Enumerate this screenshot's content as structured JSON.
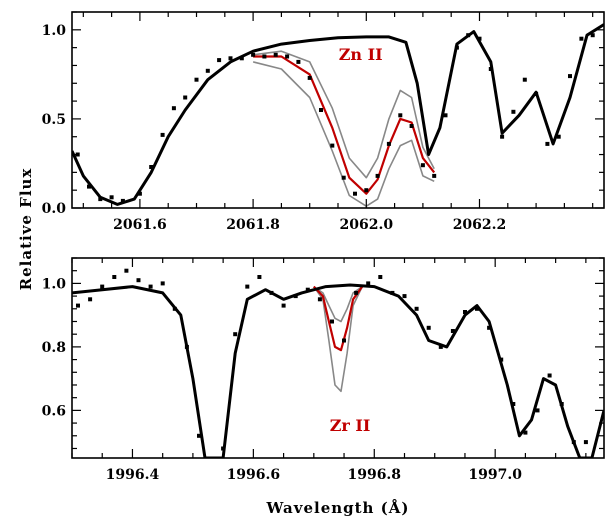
{
  "figure": {
    "xlabel": "Wavelength (Å)",
    "ylabel": "Relative Flux"
  },
  "colors": {
    "data": "#000000",
    "model": "#000000",
    "fit": "#c00000",
    "bounds": "#888888",
    "annotation": "#c00000"
  },
  "chart_data": [
    {
      "type": "line",
      "panel": "top",
      "xlim": [
        2061.48,
        2062.42
      ],
      "ylim": [
        0.0,
        1.1
      ],
      "xticks": [
        2061.6,
        2061.8,
        2062.0,
        2062.2
      ],
      "xtick_labels": [
        "2061.6",
        "2061.8",
        "2062.0",
        "2062.2"
      ],
      "yticks": [
        0.0,
        0.5,
        1.0
      ],
      "ytick_labels": [
        "0.0",
        "0.5",
        "1.0"
      ],
      "annotation": {
        "text": "Zn II",
        "x": 2061.99,
        "y": 0.83
      },
      "series": [
        {
          "name": "",
          "role": "model_without_line",
          "x": [
            2061.48,
            2061.5,
            2061.53,
            2061.56,
            2061.59,
            2061.62,
            2061.65,
            2061.68,
            2061.72,
            2061.76,
            2061.8,
            2061.85,
            2061.9,
            2061.95,
            2062.0,
            2062.04,
            2062.07,
            2062.09,
            2062.11,
            2062.13,
            2062.16,
            2062.19,
            2062.22,
            2062.24,
            2062.27,
            2062.3,
            2062.33,
            2062.36,
            2062.39,
            2062.42
          ],
          "y": [
            0.32,
            0.18,
            0.06,
            0.02,
            0.05,
            0.2,
            0.4,
            0.55,
            0.72,
            0.82,
            0.88,
            0.92,
            0.94,
            0.955,
            0.96,
            0.96,
            0.93,
            0.7,
            0.3,
            0.45,
            0.92,
            0.99,
            0.82,
            0.42,
            0.52,
            0.65,
            0.36,
            0.62,
            0.97,
            1.03
          ]
        },
        {
          "name": "",
          "role": "best_fit",
          "x": [
            2061.8,
            2061.85,
            2061.9,
            2061.94,
            2061.97,
            2062.0,
            2062.02,
            2062.04,
            2062.06,
            2062.08,
            2062.1,
            2062.12
          ],
          "y": [
            0.85,
            0.85,
            0.75,
            0.45,
            0.17,
            0.08,
            0.16,
            0.35,
            0.5,
            0.48,
            0.28,
            0.2
          ]
        },
        {
          "name": "",
          "role": "upper_bound",
          "x": [
            2061.8,
            2061.85,
            2061.9,
            2061.94,
            2061.97,
            2062.0,
            2062.02,
            2062.04,
            2062.06,
            2062.08,
            2062.1,
            2062.12
          ],
          "y": [
            0.86,
            0.88,
            0.82,
            0.56,
            0.28,
            0.17,
            0.28,
            0.5,
            0.66,
            0.62,
            0.34,
            0.22
          ]
        },
        {
          "name": "",
          "role": "lower_bound",
          "x": [
            2061.8,
            2061.85,
            2061.9,
            2061.94,
            2061.97,
            2062.0,
            2062.02,
            2062.04,
            2062.06,
            2062.08,
            2062.1,
            2062.12
          ],
          "y": [
            0.82,
            0.78,
            0.62,
            0.32,
            0.07,
            0.01,
            0.05,
            0.22,
            0.35,
            0.38,
            0.18,
            0.15
          ]
        },
        {
          "name": "",
          "role": "observed",
          "x": [
            2061.49,
            2061.51,
            2061.53,
            2061.55,
            2061.57,
            2061.6,
            2061.62,
            2061.64,
            2061.66,
            2061.68,
            2061.7,
            2061.72,
            2061.74,
            2061.76,
            2061.78,
            2061.8,
            2061.82,
            2061.84,
            2061.86,
            2061.88,
            2061.9,
            2061.92,
            2061.94,
            2061.96,
            2061.98,
            2062.0,
            2062.02,
            2062.04,
            2062.06,
            2062.08,
            2062.1,
            2062.12,
            2062.14,
            2062.16,
            2062.18,
            2062.2,
            2062.22,
            2062.24,
            2062.26,
            2062.28,
            2062.3,
            2062.32,
            2062.34,
            2062.36,
            2062.38,
            2062.4
          ],
          "y": [
            0.3,
            0.12,
            0.05,
            0.06,
            0.04,
            0.08,
            0.23,
            0.41,
            0.56,
            0.62,
            0.72,
            0.77,
            0.83,
            0.84,
            0.84,
            0.86,
            0.85,
            0.86,
            0.85,
            0.82,
            0.73,
            0.55,
            0.35,
            0.17,
            0.08,
            0.1,
            0.18,
            0.36,
            0.52,
            0.46,
            0.24,
            0.18,
            0.52,
            0.9,
            0.97,
            0.95,
            0.78,
            0.4,
            0.54,
            0.72,
            0.64,
            0.36,
            0.4,
            0.74,
            0.95,
            0.97
          ]
        }
      ]
    },
    {
      "type": "line",
      "panel": "bottom",
      "xlim": [
        1996.3,
        1997.18
      ],
      "ylim": [
        0.45,
        1.08
      ],
      "xticks": [
        1996.4,
        1996.6,
        1996.8,
        1997.0
      ],
      "xtick_labels": [
        "1996.4",
        "1996.6",
        "1996.8",
        "1997.0"
      ],
      "yticks": [
        0.6,
        0.8,
        1.0
      ],
      "ytick_labels": [
        "0.6",
        "0.8",
        "1.0"
      ],
      "annotation": {
        "text": "Zr II",
        "x": 1996.76,
        "y": 0.535
      },
      "series": [
        {
          "name": "",
          "role": "model_without_line",
          "x": [
            1996.3,
            1996.35,
            1996.4,
            1996.45,
            1996.48,
            1996.5,
            1996.52,
            1996.55,
            1996.57,
            1996.59,
            1996.62,
            1996.65,
            1996.68,
            1996.72,
            1996.76,
            1996.8,
            1996.84,
            1996.87,
            1996.89,
            1996.92,
            1996.95,
            1996.97,
            1996.99,
            1997.02,
            1997.04,
            1997.06,
            1997.08,
            1997.1,
            1997.12,
            1997.14,
            1997.16,
            1997.18
          ],
          "y": [
            0.97,
            0.98,
            0.99,
            0.97,
            0.9,
            0.7,
            0.45,
            0.45,
            0.78,
            0.95,
            0.98,
            0.95,
            0.97,
            0.99,
            0.995,
            0.99,
            0.96,
            0.9,
            0.82,
            0.8,
            0.9,
            0.93,
            0.88,
            0.68,
            0.52,
            0.57,
            0.7,
            0.68,
            0.55,
            0.45,
            0.45,
            0.6
          ]
        },
        {
          "name": "",
          "role": "best_fit",
          "x": [
            1996.7,
            1996.715,
            1996.725,
            1996.735,
            1996.745,
            1996.755,
            1996.765,
            1996.78
          ],
          "y": [
            0.99,
            0.96,
            0.88,
            0.8,
            0.79,
            0.86,
            0.95,
            0.99
          ]
        },
        {
          "name": "",
          "role": "upper_bound",
          "x": [
            1996.7,
            1996.715,
            1996.725,
            1996.735,
            1996.745,
            1996.755,
            1996.765,
            1996.78
          ],
          "y": [
            0.99,
            0.97,
            0.93,
            0.89,
            0.88,
            0.92,
            0.97,
            0.99
          ]
        },
        {
          "name": "",
          "role": "lower_bound",
          "x": [
            1996.7,
            1996.715,
            1996.725,
            1996.735,
            1996.745,
            1996.755,
            1996.765,
            1996.78
          ],
          "y": [
            0.99,
            0.95,
            0.82,
            0.68,
            0.66,
            0.78,
            0.93,
            0.99
          ]
        },
        {
          "name": "",
          "role": "observed",
          "x": [
            1996.31,
            1996.33,
            1996.35,
            1996.37,
            1996.39,
            1996.41,
            1996.43,
            1996.45,
            1996.47,
            1996.49,
            1996.51,
            1996.55,
            1996.57,
            1996.59,
            1996.61,
            1996.63,
            1996.65,
            1996.67,
            1996.69,
            1996.71,
            1996.73,
            1996.75,
            1996.77,
            1996.79,
            1996.81,
            1996.83,
            1996.85,
            1996.87,
            1996.89,
            1996.91,
            1996.93,
            1996.95,
            1996.97,
            1996.99,
            1997.01,
            1997.03,
            1997.05,
            1997.07,
            1997.09,
            1997.11,
            1997.13,
            1997.15
          ],
          "y": [
            0.93,
            0.95,
            0.99,
            1.02,
            1.04,
            1.01,
            0.99,
            1.0,
            0.92,
            0.8,
            0.52,
            0.48,
            0.84,
            0.99,
            1.02,
            0.97,
            0.93,
            0.96,
            0.98,
            0.95,
            0.88,
            0.82,
            0.97,
            1.0,
            1.02,
            0.97,
            0.96,
            0.92,
            0.86,
            0.8,
            0.85,
            0.91,
            0.92,
            0.86,
            0.76,
            0.62,
            0.53,
            0.6,
            0.71,
            0.62,
            0.5,
            0.5
          ]
        }
      ]
    }
  ]
}
